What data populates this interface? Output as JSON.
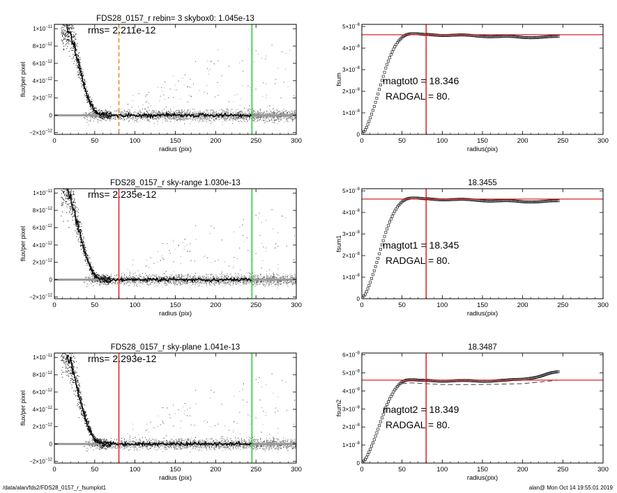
{
  "footer": {
    "path": "/data/alan/fds2/FDS28_0157_r_fsumplot1",
    "stamp": "alan@  Mon Oct 14 19:55:01 2019"
  },
  "colors": {
    "data_points": "#000000",
    "sky_points": "#999999",
    "profile": "#000000",
    "green_line": "#22cc22",
    "red_line": "#dd2222",
    "orange_line": "#e8891c",
    "dash_line": "#553344"
  },
  "chart_data": [
    {
      "type": "scatter",
      "title": "FDS28_0157_r rebin= 3    skybox0:  1.045e-13",
      "xlabel": "radius (pix)",
      "ylabel": "flux/per pixel",
      "xlim": [
        0,
        300
      ],
      "ylim": [
        -2.2e-12,
        1.05e-11
      ],
      "xticks": [
        0,
        50,
        100,
        150,
        200,
        250,
        300
      ],
      "xtick_labels": [
        "0",
        "50",
        "100",
        "150",
        "200",
        "250",
        "300"
      ],
      "yticks": [
        -2e-12,
        0,
        2e-12,
        4e-12,
        6e-12,
        8e-12,
        1e-11
      ],
      "ytick_labels": [
        {
          "m": "−2×10",
          "e": "−12"
        },
        {
          "m": "0",
          "e": ""
        },
        {
          "m": "2×10",
          "e": "−12"
        },
        {
          "m": "4×10",
          "e": "−12"
        },
        {
          "m": "6×10",
          "e": "−12"
        },
        {
          "m": "8×10",
          "e": "−12"
        },
        {
          "m": "1×10",
          "e": "−11"
        }
      ],
      "annotation": "rms= 2.211e-12",
      "vline_sky": 80,
      "vline_sky_style": "orange-dashed",
      "vline_edge": 245,
      "grid": false,
      "profile": {
        "x": [
          15,
          20,
          25,
          30,
          35,
          40,
          45,
          50,
          55,
          60,
          70,
          80,
          100,
          150,
          200,
          245
        ],
        "y": [
          1.05e-11,
          9.6e-12,
          7.8e-12,
          5.8e-12,
          4e-12,
          2.5e-12,
          1.3e-12,
          5e-13,
          1.5e-13,
          5e-14,
          0,
          0,
          0,
          0,
          0,
          0
        ]
      }
    },
    {
      "type": "scatter",
      "title": "",
      "xlabel": "radius(pix)",
      "ylabel": "fsum",
      "xlim": [
        0,
        300
      ],
      "ylim": [
        0,
        5.1e-08
      ],
      "xticks": [
        0,
        50,
        100,
        150,
        200,
        250,
        300
      ],
      "xtick_labels": [
        "0",
        "50",
        "100",
        "150",
        "200",
        "250",
        "300"
      ],
      "yticks": [
        0,
        1e-08,
        2e-08,
        3e-08,
        4e-08,
        5e-08
      ],
      "ytick_labels": [
        {
          "m": "0",
          "e": ""
        },
        {
          "m": "1×10",
          "e": "−8"
        },
        {
          "m": "2×10",
          "e": "−8"
        },
        {
          "m": "3×10",
          "e": "−8"
        },
        {
          "m": "4×10",
          "e": "−8"
        },
        {
          "m": "5×10",
          "e": "−8"
        }
      ],
      "annotations": [
        "magtot0 =  18.346",
        "RADGAL =     80."
      ],
      "hline": 4.62e-08,
      "vline": 80,
      "curve": {
        "x": [
          0,
          5,
          10,
          15,
          20,
          25,
          30,
          35,
          40,
          45,
          50,
          55,
          60,
          65,
          70,
          80,
          100,
          150,
          200,
          245
        ],
        "y": [
          0,
          2.5e-09,
          7e-09,
          1.25e-08,
          1.85e-08,
          2.5e-08,
          3.1e-08,
          3.6e-08,
          4e-08,
          4.3e-08,
          4.5e-08,
          4.62e-08,
          4.66e-08,
          4.67e-08,
          4.66e-08,
          4.63e-08,
          4.61e-08,
          4.56e-08,
          4.5e-08,
          4.52e-08
        ]
      },
      "dash_curve": null
    },
    {
      "type": "scatter",
      "title": "FDS28_0157_r sky-range  1.030e-13",
      "xlabel": "radius (pix)",
      "ylabel": "flux/per pixel",
      "xlim": [
        0,
        300
      ],
      "ylim": [
        -2.2e-12,
        1.05e-11
      ],
      "xticks": [
        0,
        50,
        100,
        150,
        200,
        250,
        300
      ],
      "xtick_labels": [
        "0",
        "50",
        "100",
        "150",
        "200",
        "250",
        "300"
      ],
      "yticks": [
        -2e-12,
        0,
        2e-12,
        4e-12,
        6e-12,
        8e-12,
        1e-11
      ],
      "ytick_labels": [
        {
          "m": "−2×10",
          "e": "−12"
        },
        {
          "m": "0",
          "e": ""
        },
        {
          "m": "2×10",
          "e": "−12"
        },
        {
          "m": "4×10",
          "e": "−12"
        },
        {
          "m": "6×10",
          "e": "−12"
        },
        {
          "m": "8×10",
          "e": "−12"
        },
        {
          "m": "1×10",
          "e": "−11"
        }
      ],
      "annotation": "rms= 2.235e-12",
      "vline_sky": 80,
      "vline_sky_style": "red-solid",
      "vline_edge": 245,
      "grid": false,
      "profile": {
        "x": [
          15,
          20,
          25,
          30,
          35,
          40,
          45,
          50,
          55,
          60,
          70,
          80,
          100,
          150,
          200,
          245
        ],
        "y": [
          1.05e-11,
          9.6e-12,
          7.8e-12,
          5.8e-12,
          4e-12,
          2.5e-12,
          1.3e-12,
          5e-13,
          1.5e-13,
          5e-14,
          0,
          0,
          0,
          0,
          0,
          0
        ]
      }
    },
    {
      "type": "scatter",
      "title": "18.3455",
      "xlabel": "radius(pix)",
      "ylabel": "fsum1",
      "xlim": [
        0,
        300
      ],
      "ylim": [
        0,
        5.1e-08
      ],
      "xticks": [
        0,
        50,
        100,
        150,
        200,
        250,
        300
      ],
      "xtick_labels": [
        "0",
        "50",
        "100",
        "150",
        "200",
        "250",
        "300"
      ],
      "yticks": [
        0,
        1e-08,
        2e-08,
        3e-08,
        4e-08,
        5e-08
      ],
      "ytick_labels": [
        {
          "m": "0",
          "e": ""
        },
        {
          "m": "1×10",
          "e": "−8"
        },
        {
          "m": "2×10",
          "e": "−8"
        },
        {
          "m": "3×10",
          "e": "−8"
        },
        {
          "m": "4×10",
          "e": "−8"
        },
        {
          "m": "5×10",
          "e": "−8"
        }
      ],
      "annotations": [
        "magtot1 =  18.345",
        "RADGAL =     80."
      ],
      "hline": 4.62e-08,
      "vline": 80,
      "curve": {
        "x": [
          0,
          5,
          10,
          15,
          20,
          25,
          30,
          35,
          40,
          45,
          50,
          55,
          60,
          65,
          70,
          80,
          100,
          150,
          200,
          245
        ],
        "y": [
          0,
          2.5e-09,
          7e-09,
          1.25e-08,
          1.85e-08,
          2.5e-08,
          3.1e-08,
          3.6e-08,
          4e-08,
          4.3e-08,
          4.5e-08,
          4.62e-08,
          4.66e-08,
          4.67e-08,
          4.66e-08,
          4.63e-08,
          4.61e-08,
          4.56e-08,
          4.5e-08,
          4.52e-08
        ]
      },
      "dash_curve": null
    },
    {
      "type": "scatter",
      "title": "FDS28_0157_r sky-plane  1.041e-13",
      "xlabel": "radius (pix)",
      "ylabel": "flux/per pixel",
      "xlim": [
        0,
        300
      ],
      "ylim": [
        -2.2e-12,
        1.05e-11
      ],
      "xticks": [
        0,
        50,
        100,
        150,
        200,
        250,
        300
      ],
      "xtick_labels": [
        "0",
        "50",
        "100",
        "150",
        "200",
        "250",
        "300"
      ],
      "yticks": [
        -2e-12,
        0,
        2e-12,
        4e-12,
        6e-12,
        8e-12,
        1e-11
      ],
      "ytick_labels": [
        {
          "m": "−2×10",
          "e": "−12"
        },
        {
          "m": "0",
          "e": ""
        },
        {
          "m": "2×10",
          "e": "−12"
        },
        {
          "m": "4×10",
          "e": "−12"
        },
        {
          "m": "6×10",
          "e": "−12"
        },
        {
          "m": "8×10",
          "e": "−12"
        },
        {
          "m": "1×10",
          "e": "−11"
        }
      ],
      "annotation": "rms= 2.293e-12",
      "vline_sky": 80,
      "vline_sky_style": "red-solid",
      "vline_edge": 245,
      "grid": false,
      "profile": {
        "x": [
          15,
          20,
          25,
          30,
          35,
          40,
          45,
          50,
          55,
          60,
          70,
          80,
          100,
          150,
          200,
          245
        ],
        "y": [
          1.05e-11,
          9.6e-12,
          7.8e-12,
          5.8e-12,
          4e-12,
          2.5e-12,
          1.3e-12,
          5e-13,
          1.5e-13,
          5e-14,
          0,
          0,
          0,
          0,
          0,
          0
        ]
      }
    },
    {
      "type": "scatter",
      "title": "18.3487",
      "xlabel": "radius(pix)",
      "ylabel": "fsum2",
      "xlim": [
        0,
        300
      ],
      "ylim": [
        0,
        6.1e-08
      ],
      "xticks": [
        0,
        50,
        100,
        150,
        200,
        250,
        300
      ],
      "xtick_labels": [
        "0",
        "50",
        "100",
        "150",
        "200",
        "250",
        "300"
      ],
      "yticks": [
        0,
        1e-08,
        2e-08,
        3e-08,
        4e-08,
        5e-08,
        6e-08
      ],
      "ytick_labels": [
        {
          "m": "0",
          "e": ""
        },
        {
          "m": "1×10",
          "e": "−8"
        },
        {
          "m": "2×10",
          "e": "−8"
        },
        {
          "m": "3×10",
          "e": "−8"
        },
        {
          "m": "4×10",
          "e": "−8"
        },
        {
          "m": "5×10",
          "e": "−8"
        },
        {
          "m": "6×10",
          "e": "−8"
        }
      ],
      "annotations": [
        "magtot2 =  18.349",
        "RADGAL =     80."
      ],
      "hline": 4.6e-08,
      "vline": 80,
      "curve": {
        "x": [
          0,
          5,
          10,
          15,
          20,
          25,
          30,
          35,
          40,
          45,
          50,
          55,
          60,
          65,
          70,
          80,
          100,
          150,
          180,
          200,
          220,
          235,
          245
        ],
        "y": [
          0,
          2.5e-09,
          7e-09,
          1.25e-08,
          1.85e-08,
          2.5e-08,
          3.1e-08,
          3.6e-08,
          4e-08,
          4.3e-08,
          4.5e-08,
          4.6e-08,
          4.62e-08,
          4.62e-08,
          4.6e-08,
          4.58e-08,
          4.56e-08,
          4.55e-08,
          4.58e-08,
          4.65e-08,
          4.8e-08,
          4.98e-08,
          5.05e-08
        ]
      },
      "dash_curve": {
        "x": [
          50,
          60,
          80,
          100,
          150,
          200,
          245
        ],
        "y": [
          4.4e-08,
          4.45e-08,
          4.4e-08,
          4.35e-08,
          4.35e-08,
          4.4e-08,
          4.6e-08
        ]
      }
    }
  ]
}
